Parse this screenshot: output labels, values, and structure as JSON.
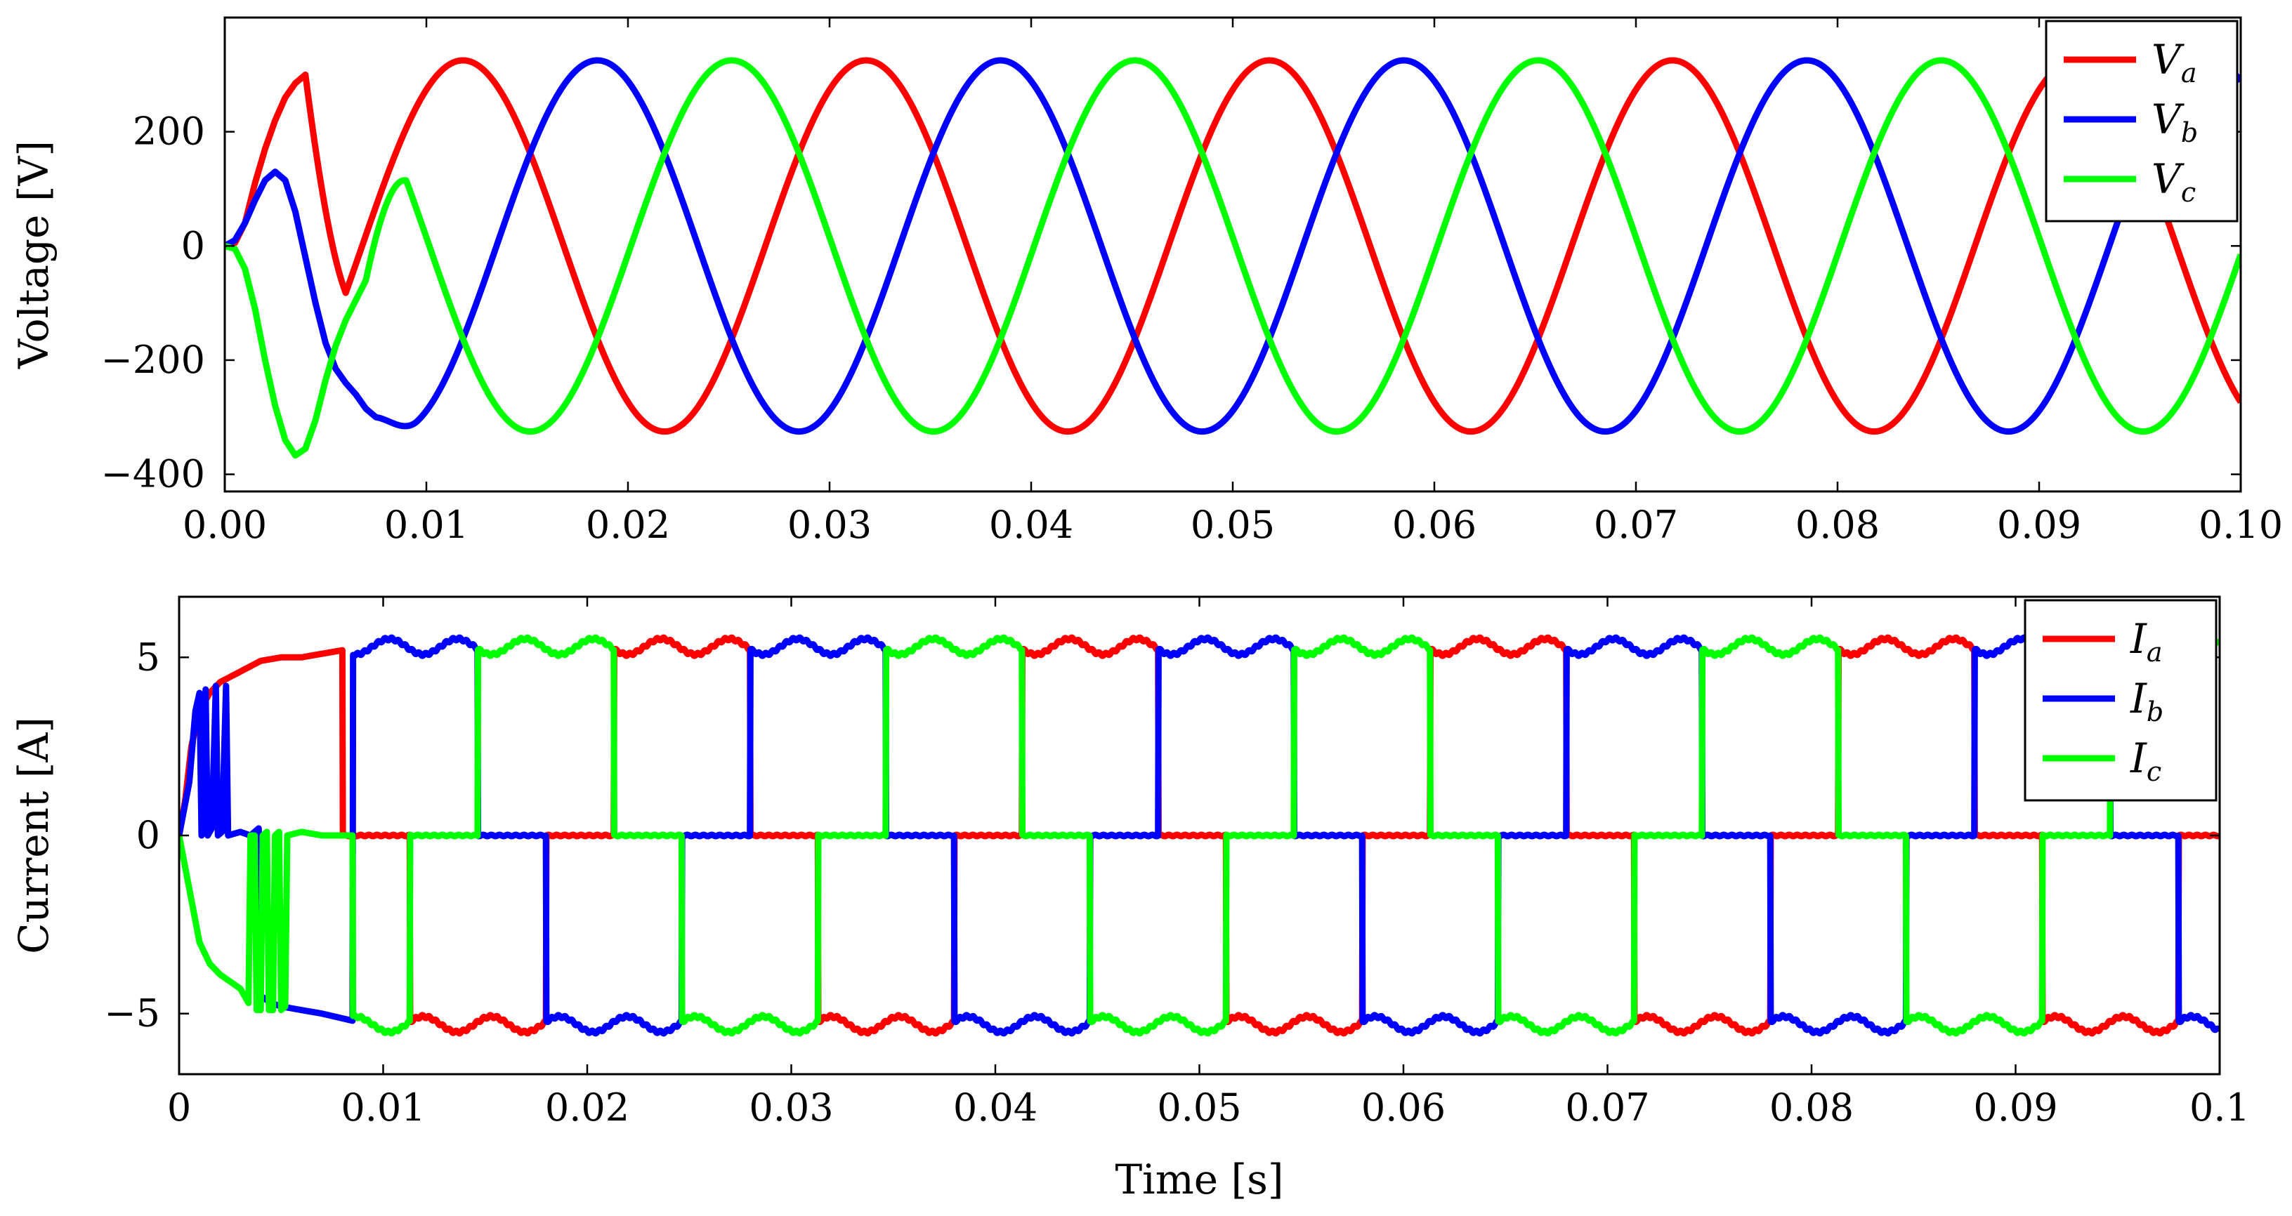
{
  "chart_data": [
    {
      "type": "line",
      "title": "",
      "xlabel": "",
      "ylabel": "Voltage [V]",
      "xlim": [
        0,
        0.1
      ],
      "ylim": [
        -430,
        400
      ],
      "xticks": [
        "0.00",
        "0.01",
        "0.02",
        "0.03",
        "0.04",
        "0.05",
        "0.06",
        "0.07",
        "0.08",
        "0.09",
        "0.10"
      ],
      "yticks": [
        {
          "v": 200,
          "label": "200"
        },
        {
          "v": 0,
          "label": "0"
        },
        {
          "v": -200,
          "label": "−200"
        },
        {
          "v": -400,
          "label": "−400"
        }
      ],
      "legend_position": "top-right",
      "grid": false,
      "frequency_hz": 50,
      "amplitude": 325,
      "series": [
        {
          "name": "V",
          "sub": "a",
          "color": "#ff0000",
          "phase_deg": 0,
          "startup": [
            [
              0,
              0
            ],
            [
              0.0005,
              5
            ],
            [
              0.001,
              40
            ],
            [
              0.0015,
              110
            ],
            [
              0.002,
              170
            ],
            [
              0.0025,
              220
            ],
            [
              0.003,
              260
            ],
            [
              0.0035,
              285
            ],
            [
              0.004,
              300
            ]
          ]
        },
        {
          "name": "V",
          "sub": "b",
          "color": "#0000ff",
          "phase_deg": -120,
          "startup": [
            [
              0,
              0
            ],
            [
              0.0005,
              10
            ],
            [
              0.001,
              40
            ],
            [
              0.0015,
              80
            ],
            [
              0.002,
              115
            ],
            [
              0.0025,
              130
            ],
            [
              0.003,
              115
            ],
            [
              0.0035,
              60
            ],
            [
              0.004,
              -20
            ],
            [
              0.0045,
              -100
            ],
            [
              0.005,
              -170
            ],
            [
              0.0055,
              -215
            ],
            [
              0.006,
              -240
            ],
            [
              0.0065,
              -260
            ],
            [
              0.007,
              -285
            ],
            [
              0.0075,
              -300
            ]
          ]
        },
        {
          "name": "V",
          "sub": "c",
          "color": "#00ff00",
          "phase_deg": 120,
          "startup": [
            [
              0,
              0
            ],
            [
              0.0005,
              -5
            ],
            [
              0.001,
              -40
            ],
            [
              0.0015,
              -110
            ],
            [
              0.002,
              -200
            ],
            [
              0.0025,
              -280
            ],
            [
              0.003,
              -340
            ],
            [
              0.0035,
              -367
            ],
            [
              0.004,
              -355
            ],
            [
              0.0045,
              -305
            ],
            [
              0.005,
              -235
            ],
            [
              0.0055,
              -175
            ],
            [
              0.006,
              -130
            ],
            [
              0.0065,
              -95
            ],
            [
              0.007,
              -60
            ]
          ]
        }
      ]
    },
    {
      "type": "line",
      "title": "",
      "xlabel": "Time [s]",
      "ylabel": "Current [A]",
      "xlim": [
        0,
        0.1
      ],
      "ylim": [
        -6.7,
        6.7
      ],
      "xticks": [
        "0",
        "0.01",
        "0.02",
        "0.03",
        "0.04",
        "0.05",
        "0.06",
        "0.07",
        "0.08",
        "0.09",
        "0.1"
      ],
      "yticks": [
        {
          "v": 5,
          "label": "5"
        },
        {
          "v": 0,
          "label": "0"
        },
        {
          "v": -5,
          "label": "−5"
        }
      ],
      "legend_position": "top-right",
      "grid": false,
      "frequency_hz": 50,
      "amplitude": 5.3,
      "series": [
        {
          "name": "I",
          "sub": "a",
          "color": "#ff0000",
          "phase_deg": 0,
          "startup": [
            [
              0,
              0
            ],
            [
              0.0003,
              1.0
            ],
            [
              0.0006,
              2.5
            ],
            [
              0.001,
              3.5
            ],
            [
              0.0015,
              4.0
            ],
            [
              0.002,
              4.3
            ],
            [
              0.003,
              4.6
            ],
            [
              0.004,
              4.9
            ],
            [
              0.005,
              5.0
            ],
            [
              0.006,
              5.0
            ],
            [
              0.007,
              5.1
            ],
            [
              0.008,
              5.2
            ]
          ]
        },
        {
          "name": "I",
          "sub": "b",
          "color": "#0000ff",
          "phase_deg": -120,
          "startup": [
            [
              0,
              0
            ],
            [
              0.0005,
              1.5
            ],
            [
              0.0008,
              3.5
            ],
            [
              0.001,
              4.0
            ],
            [
              0.0011,
              0
            ],
            [
              0.0013,
              4.1
            ],
            [
              0.0014,
              0
            ],
            [
              0.0016,
              0.2
            ],
            [
              0.0018,
              4.2
            ],
            [
              0.0019,
              0
            ],
            [
              0.0021,
              0.1
            ],
            [
              0.0023,
              4.2
            ],
            [
              0.0024,
              0
            ],
            [
              0.003,
              0.1
            ],
            [
              0.0035,
              0
            ],
            [
              0.0039,
              0.2
            ],
            [
              0.004,
              -4.5
            ],
            [
              0.0045,
              -4.7
            ],
            [
              0.005,
              -4.8
            ],
            [
              0.006,
              -4.9
            ],
            [
              0.007,
              -5.0
            ],
            [
              0.0085,
              -5.2
            ]
          ]
        },
        {
          "name": "I",
          "sub": "c",
          "color": "#00ff00",
          "phase_deg": 120,
          "startup": [
            [
              0,
              0
            ],
            [
              0.0005,
              -1.5
            ],
            [
              0.001,
              -3.0
            ],
            [
              0.0015,
              -3.6
            ],
            [
              0.002,
              -3.9
            ],
            [
              0.0025,
              -4.1
            ],
            [
              0.003,
              -4.3
            ],
            [
              0.0034,
              -4.7
            ],
            [
              0.0035,
              0
            ],
            [
              0.0037,
              0
            ],
            [
              0.0038,
              -4.9
            ],
            [
              0.004,
              -4.9
            ],
            [
              0.0041,
              0
            ],
            [
              0.0043,
              0.1
            ],
            [
              0.0044,
              -4.9
            ],
            [
              0.0046,
              -4.9
            ],
            [
              0.0047,
              0
            ],
            [
              0.0049,
              0.1
            ],
            [
              0.005,
              -4.9
            ],
            [
              0.0052,
              -4.8
            ],
            [
              0.0053,
              0
            ],
            [
              0.006,
              0.1
            ],
            [
              0.007,
              0
            ],
            [
              0.0085,
              0
            ]
          ]
        }
      ]
    }
  ]
}
